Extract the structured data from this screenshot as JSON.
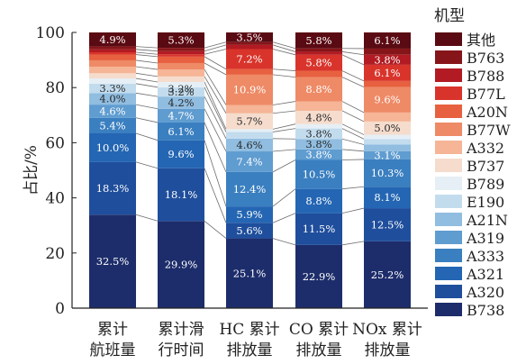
{
  "chart_data": {
    "type": "bar",
    "stacked": true,
    "title": "",
    "xlabel": "",
    "ylabel": "占比/%",
    "ylim": [
      0,
      100
    ],
    "yticks": [
      0,
      20,
      40,
      60,
      80,
      100
    ],
    "grid": false,
    "legend_title": "机型",
    "legend_position": "right",
    "categories": [
      {
        "line1": "累计",
        "line2": "航班量"
      },
      {
        "line1": "累计滑",
        "line2": "行时间"
      },
      {
        "line1": "HC 累计",
        "line2": "排放量"
      },
      {
        "line1": "CO 累计",
        "line2": "排放量"
      },
      {
        "line1": "NOx 累计",
        "line2": "排放量"
      }
    ],
    "series": [
      {
        "name": "B738",
        "color": "#1d2d6b",
        "values": [
          32.5,
          29.9,
          25.1,
          22.9,
          25.2
        ]
      },
      {
        "name": "A320",
        "color": "#1f4e9c",
        "values": [
          18.3,
          18.1,
          5.6,
          11.5,
          12.5
        ]
      },
      {
        "name": "A321",
        "color": "#2466b3",
        "values": [
          10.0,
          9.6,
          5.9,
          8.8,
          8.1
        ]
      },
      {
        "name": "A333",
        "color": "#3a7fc0",
        "values": [
          5.4,
          6.1,
          12.4,
          10.5,
          10.3
        ]
      },
      {
        "name": "A319",
        "color": "#5f9cd0",
        "values": [
          4.6,
          4.7,
          7.4,
          3.8,
          3.1
        ]
      },
      {
        "name": "A21N",
        "color": "#90bde0",
        "values": [
          4.0,
          4.2,
          4.6,
          3.8,
          2.5
        ]
      },
      {
        "name": "E190",
        "color": "#c2dcee",
        "values": [
          3.3,
          3.2,
          2.4,
          3.8,
          2.1
        ]
      },
      {
        "name": "B789",
        "color": "#e5eff5",
        "values": [
          1.8,
          1.8,
          1.0,
          1.6,
          1.6
        ]
      },
      {
        "name": "B737",
        "color": "#f5dccd",
        "values": [
          1.8,
          1.9,
          5.7,
          4.8,
          5.0
        ]
      },
      {
        "name": "A332",
        "color": "#f5b596",
        "values": [
          2.3,
          2.4,
          3.0,
          3.4,
          3.4
        ]
      },
      {
        "name": "B77W",
        "color": "#ee8a66",
        "values": [
          2.2,
          2.2,
          10.9,
          8.8,
          9.6
        ]
      },
      {
        "name": "A20N",
        "color": "#e7603f",
        "values": [
          2.0,
          2.2,
          2.0,
          2.3,
          2.3
        ]
      },
      {
        "name": "B77L",
        "color": "#d9342b",
        "values": [
          0.8,
          0.8,
          7.2,
          5.8,
          6.1
        ]
      },
      {
        "name": "B788",
        "color": "#b21b23",
        "values": [
          1.0,
          1.1,
          1.5,
          1.1,
          3.8
        ]
      },
      {
        "name": "B763",
        "color": "#861519",
        "values": [
          1.0,
          1.1,
          1.0,
          1.2,
          2.3
        ]
      },
      {
        "name": "其他",
        "color": "#5a0a12",
        "values": [
          4.9,
          5.3,
          3.5,
          5.8,
          6.1
        ]
      }
    ],
    "data_labels": [
      {
        "series": "B738",
        "values": [
          "32.5%",
          "29.9%",
          "25.1%",
          "22.9%",
          "25.2%"
        ]
      },
      {
        "series": "A320",
        "values": [
          "18.3%",
          "18.1%",
          "5.6%",
          "11.5%",
          "12.5%"
        ]
      },
      {
        "series": "A321",
        "values": [
          "10.0%",
          "9.6%",
          "5.9%",
          "8.8%",
          "8.1%"
        ]
      },
      {
        "series": "A333",
        "values": [
          "5.4%",
          "6.1%",
          "12.4%",
          "10.5%",
          "10.3%"
        ]
      },
      {
        "series": "A319",
        "values": [
          "4.6%",
          "4.7%",
          "7.4%",
          "3.8%",
          "3.1%"
        ]
      },
      {
        "series": "A21N",
        "values": [
          "4.0%",
          "4.2%",
          "4.6%",
          "3.8%",
          ""
        ]
      },
      {
        "series": "E190",
        "values": [
          "3.3%",
          "3.2%",
          "",
          "3.8%",
          ""
        ]
      },
      {
        "series": "B737",
        "values": [
          "",
          "",
          "5.7%",
          "4.8%",
          "5.0%"
        ]
      },
      {
        "series": "B77W",
        "values": [
          "",
          "",
          "10.9%",
          "8.8%",
          "9.6%"
        ]
      },
      {
        "series": "B77L",
        "values": [
          "",
          "",
          "7.2%",
          "5.8%",
          "6.1%"
        ]
      },
      {
        "series": "B788",
        "values": [
          "",
          "",
          "",
          "",
          "3.8%"
        ]
      },
      {
        "series": "其他",
        "values": [
          "4.9%",
          "5.3%",
          "3.5%",
          "5.8%",
          "6.1%"
        ]
      }
    ],
    "extra_labels": [
      {
        "category_index": 1,
        "y": 79.5,
        "text": "3.2%"
      }
    ]
  }
}
